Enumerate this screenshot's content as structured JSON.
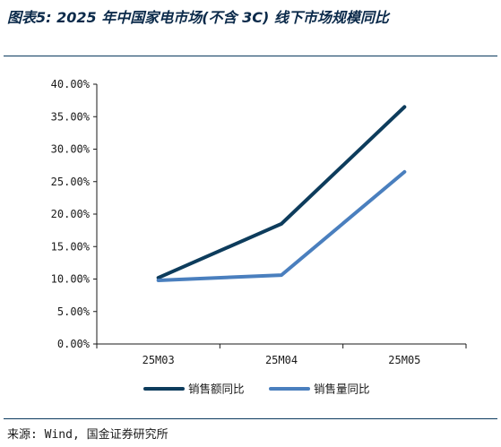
{
  "header": {
    "title": "图表5: 2025 年中国家电市场(不含 3C) 线下市场规模同比"
  },
  "footer": {
    "source": "来源: Wind, 国金证券研究所"
  },
  "chart_data": {
    "type": "line",
    "categories": [
      "25M03",
      "25M04",
      "25M05"
    ],
    "series": [
      {
        "name": "销售额同比",
        "values": [
          10.2,
          18.5,
          36.5
        ],
        "color": "#0d3c5c"
      },
      {
        "name": "销售量同比",
        "values": [
          9.8,
          10.6,
          26.5
        ],
        "color": "#4a7fbe"
      }
    ],
    "ylim": [
      0,
      40
    ],
    "yticks": [
      0,
      5,
      10,
      15,
      20,
      25,
      30,
      35,
      40
    ],
    "ytick_labels": [
      "0.00%",
      "5.00%",
      "10.00%",
      "15.00%",
      "20.00%",
      "25.00%",
      "30.00%",
      "35.00%",
      "40.00%"
    ],
    "grid": false,
    "legend_position": "bottom"
  }
}
